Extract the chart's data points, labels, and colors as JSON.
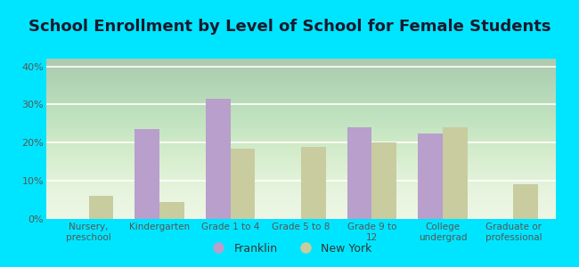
{
  "title": "School Enrollment by Level of School for Female Students",
  "categories": [
    "Nursery,\npreschool",
    "Kindergarten",
    "Grade 1 to 4",
    "Grade 5 to 8",
    "Grade 9 to\n12",
    "College\nundergrad",
    "Graduate or\nprofessional"
  ],
  "franklin": [
    0,
    23.5,
    31.5,
    0,
    24.0,
    22.5,
    0
  ],
  "new_york": [
    6.0,
    4.5,
    18.5,
    19.0,
    20.0,
    24.0,
    9.0
  ],
  "franklin_color": "#b89fcc",
  "new_york_color": "#c8cc9f",
  "background_outer": "#00e5ff",
  "background_inner_top": "#f5fff5",
  "background_inner_bottom": "#d8eec8",
  "ylim": [
    0,
    42
  ],
  "yticks": [
    0,
    10,
    20,
    30,
    40
  ],
  "ytick_labels": [
    "0%",
    "10%",
    "20%",
    "30%",
    "40%"
  ],
  "legend_franklin": "Franklin",
  "legend_new_york": "New York",
  "title_fontsize": 13,
  "bar_width": 0.35,
  "title_color": "#1a1a2e"
}
